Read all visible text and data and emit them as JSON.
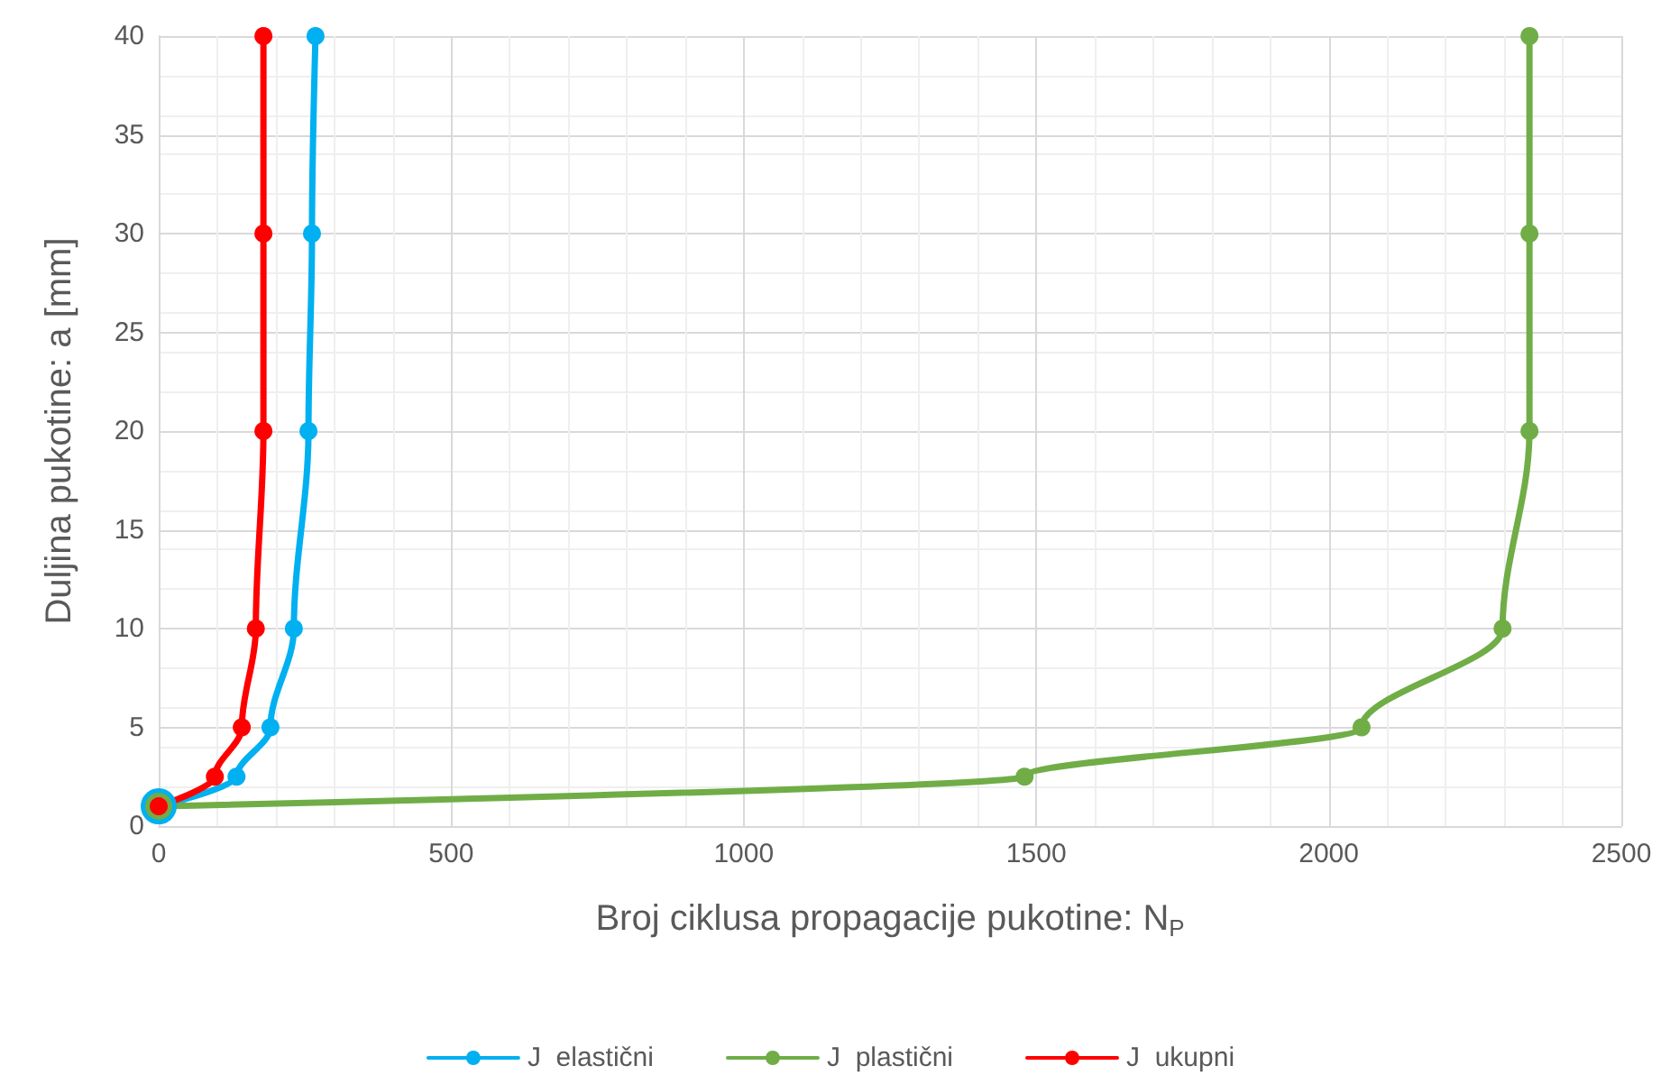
{
  "chart_data": {
    "type": "line",
    "xlabel": "Broj ciklusa propagacije pukotine: N$_{P}$",
    "ylabel": "Duljina pukotine: a [mm]",
    "xlim": [
      0,
      2500
    ],
    "xticks": [
      0,
      500,
      1000,
      1500,
      2000,
      2500
    ],
    "ylim": [
      0,
      40
    ],
    "yticks": [
      0,
      5,
      10,
      15,
      20,
      25,
      30,
      35,
      40
    ],
    "grid": true,
    "legend": "bottom",
    "marker": "circle",
    "line_style": "solid",
    "series": [
      {
        "name": "J  elastični",
        "color": "#00b0f0",
        "x": [
          0,
          133,
          191,
          231,
          256,
          262,
          268
        ],
        "values": [
          1,
          2.5,
          5,
          10,
          20,
          30,
          40
        ]
      },
      {
        "name": "J  plastični",
        "color": "#70ad47",
        "x": [
          0,
          1480,
          2056,
          2297,
          2343,
          2343,
          2343
        ],
        "values": [
          1,
          2.5,
          5,
          10,
          20,
          30,
          40
        ]
      },
      {
        "name": "J  ukupni",
        "color": "#ff0000",
        "x": [
          0,
          96,
          142,
          166,
          179,
          179,
          179
        ],
        "values": [
          1,
          2.5,
          5,
          10,
          20,
          30,
          40
        ]
      }
    ]
  }
}
